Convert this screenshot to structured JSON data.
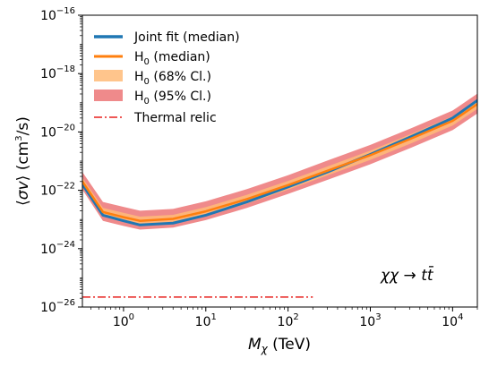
{
  "chart_data": {
    "type": "line",
    "xlabel": "M_χ (TeV)",
    "ylabel": "⟨σv⟩ (cm³/s)",
    "xscale": "log",
    "yscale": "log",
    "xlim": [
      0.3162,
      20000
    ],
    "ylim": [
      1e-26,
      1e-16
    ],
    "x_ticks": [
      {
        "value": 1,
        "mantissa": "10",
        "exp": "0"
      },
      {
        "value": 10,
        "mantissa": "10",
        "exp": "1"
      },
      {
        "value": 100,
        "mantissa": "10",
        "exp": "2"
      },
      {
        "value": 1000,
        "mantissa": "10",
        "exp": "3"
      },
      {
        "value": 10000,
        "mantissa": "10",
        "exp": "4"
      }
    ],
    "y_ticks": [
      {
        "value": 1e-26,
        "mantissa": "10",
        "exp": "−26"
      },
      {
        "value": 1e-24,
        "mantissa": "10",
        "exp": "−24"
      },
      {
        "value": 1e-22,
        "mantissa": "10",
        "exp": "−22"
      },
      {
        "value": 1e-20,
        "mantissa": "10",
        "exp": "−20"
      },
      {
        "value": 1e-18,
        "mantissa": "10",
        "exp": "−18"
      },
      {
        "value": 1e-16,
        "mantissa": "10",
        "exp": "−16"
      }
    ],
    "legend_position": "top-left",
    "annotation": "χχ → tt̄",
    "x": [
      0.3162,
      0.5623,
      1.0,
      1.585,
      4.0,
      10.0,
      31.62,
      100,
      316.2,
      1000,
      3162,
      10000,
      20000
    ],
    "series": [
      {
        "name": "Joint fit (median)",
        "style": "line",
        "color": "#1f77b4",
        "values": [
          1.6e-22,
          1.4e-23,
          9e-24,
          6.5e-24,
          7.5e-24,
          1.4e-23,
          4e-23,
          1.3e-22,
          4.5e-22,
          1.7e-21,
          7e-21,
          3e-20,
          1.2e-19
        ]
      },
      {
        "name": "H₀ (median)",
        "style": "line",
        "color": "#ff7f0e",
        "values": [
          2e-22,
          1.8e-23,
          1.2e-23,
          9e-24,
          1.05e-23,
          1.9e-23,
          5e-23,
          1.5e-22,
          4.9e-22,
          1.6e-21,
          6e-21,
          2.4e-20,
          9e-20
        ]
      },
      {
        "name": "H₀ (68% Cl.)",
        "style": "band",
        "color": "#ffbb78",
        "lower": [
          1.5e-22,
          1.3e-23,
          8.5e-24,
          6.5e-24,
          7.5e-24,
          1.35e-23,
          3.5e-23,
          1.05e-22,
          3.4e-22,
          1.1e-21,
          4.1e-21,
          1.65e-20,
          6.2e-20
        ],
        "upper": [
          2.7e-22,
          2.5e-23,
          1.7e-23,
          1.25e-23,
          1.45e-23,
          2.65e-23,
          7e-23,
          2.1e-22,
          6.9e-22,
          2.3e-21,
          8.6e-21,
          3.45e-20,
          1.3e-19
        ]
      },
      {
        "name": "H₀ (95% Cl.)",
        "style": "band",
        "color": "#e8585a",
        "lower": [
          1.05e-22,
          9e-24,
          6e-24,
          4.5e-24,
          5.3e-24,
          9.5e-24,
          2.5e-23,
          7.5e-23,
          2.4e-22,
          7.8e-22,
          2.9e-21,
          1.15e-20,
          4.3e-20
        ],
        "upper": [
          4.2e-22,
          4e-23,
          2.7e-23,
          2e-23,
          2.3e-23,
          4.2e-23,
          1.1e-22,
          3.3e-22,
          1.1e-21,
          3.6e-21,
          1.35e-20,
          5.4e-20,
          2.05e-19
        ]
      },
      {
        "name": "Thermal relic",
        "style": "dashdot",
        "color": "#e8201f",
        "x": [
          0.3162,
          200
        ],
        "values": [
          2.2e-26,
          2.2e-26
        ]
      }
    ]
  }
}
